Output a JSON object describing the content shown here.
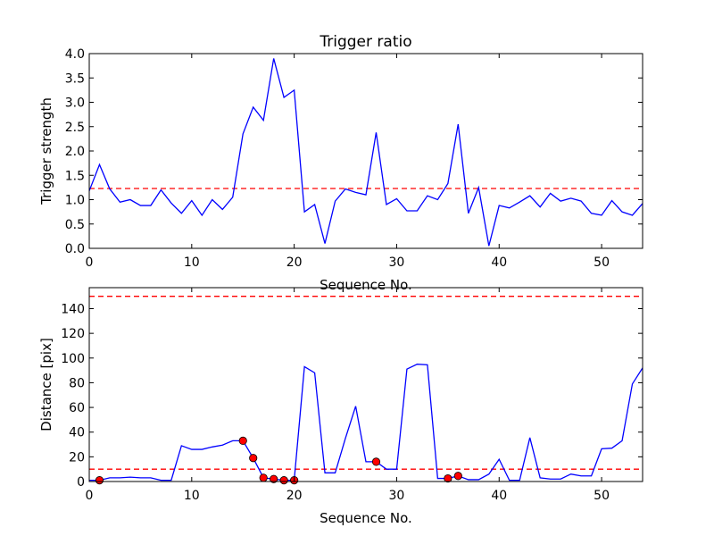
{
  "chart_data": [
    {
      "type": "line",
      "title": "Trigger ratio",
      "xlabel": "Sequence No.",
      "ylabel": "Trigger strength",
      "xlim": [
        0,
        54
      ],
      "ylim": [
        0,
        4.0
      ],
      "xticks": [
        0,
        10,
        20,
        30,
        40,
        50
      ],
      "yticks": [
        "0.0",
        "0.5",
        "1.0",
        "1.5",
        "2.0",
        "2.5",
        "3.0",
        "3.5",
        "4.0"
      ],
      "threshold": 1.23,
      "series": [
        {
          "x": [
            0,
            1,
            2,
            3,
            4,
            5,
            6,
            7,
            8,
            9,
            10,
            11,
            12,
            13,
            14,
            15,
            16,
            17,
            18,
            19,
            20,
            21,
            22,
            23,
            24,
            25,
            26,
            27,
            28,
            29,
            30,
            31,
            32,
            33,
            34,
            35,
            36,
            37,
            38,
            39,
            40,
            41,
            42,
            43,
            44,
            45,
            46,
            47,
            48,
            49,
            50,
            51,
            52,
            53,
            54
          ],
          "values": [
            1.18,
            1.72,
            1.22,
            0.95,
            1.0,
            0.88,
            0.88,
            1.2,
            0.93,
            0.72,
            0.98,
            0.68,
            1.0,
            0.8,
            1.05,
            2.35,
            2.9,
            2.63,
            3.9,
            3.1,
            3.25,
            0.75,
            0.9,
            0.1,
            0.97,
            1.22,
            1.15,
            1.1,
            2.38,
            0.9,
            1.02,
            0.77,
            0.77,
            1.08,
            1.0,
            1.33,
            2.55,
            0.72,
            1.25,
            0.05,
            0.88,
            0.83,
            0.95,
            1.08,
            0.85,
            1.13,
            0.97,
            1.03,
            0.97,
            0.72,
            0.68,
            0.98,
            0.75,
            0.68,
            0.92
          ]
        }
      ]
    },
    {
      "type": "line",
      "title": "",
      "xlabel": "Sequence No.",
      "ylabel": "Distance [pix]",
      "xlim": [
        0,
        54
      ],
      "ylim": [
        0,
        157
      ],
      "xticks": [
        0,
        10,
        20,
        30,
        40,
        50
      ],
      "yticks": [
        0,
        20,
        40,
        60,
        80,
        100,
        120,
        140
      ],
      "thresholds": [
        10,
        150
      ],
      "series": [
        {
          "x": [
            0,
            1,
            2,
            3,
            4,
            5,
            6,
            7,
            8,
            9,
            10,
            11,
            12,
            13,
            14,
            15,
            16,
            17,
            18,
            19,
            20,
            21,
            22,
            23,
            24,
            25,
            26,
            27,
            28,
            29,
            30,
            31,
            32,
            33,
            34,
            35,
            36,
            37,
            38,
            39,
            40,
            41,
            42,
            43,
            44,
            45,
            46,
            47,
            48,
            49,
            50,
            51,
            52,
            53,
            54
          ],
          "values": [
            1,
            1,
            3,
            3,
            3.5,
            3,
            3,
            1,
            1,
            29,
            26,
            26,
            28,
            29.5,
            33,
            33,
            19,
            3,
            2,
            1,
            1,
            93,
            88,
            7,
            7,
            35,
            61,
            16,
            16,
            10,
            10,
            91,
            95,
            94.5,
            2.5,
            2.5,
            4.5,
            1.5,
            1.5,
            6,
            18,
            1,
            1,
            35.5,
            3,
            2,
            2,
            6,
            4.5,
            4.5,
            26.5,
            27,
            33,
            79,
            92
          ]
        }
      ],
      "markers": {
        "x": [
          1,
          15,
          16,
          17,
          18,
          19,
          20,
          28,
          35,
          36
        ],
        "values": [
          1,
          33,
          19,
          3,
          2,
          1,
          1,
          16,
          2.5,
          4.5
        ]
      }
    }
  ]
}
